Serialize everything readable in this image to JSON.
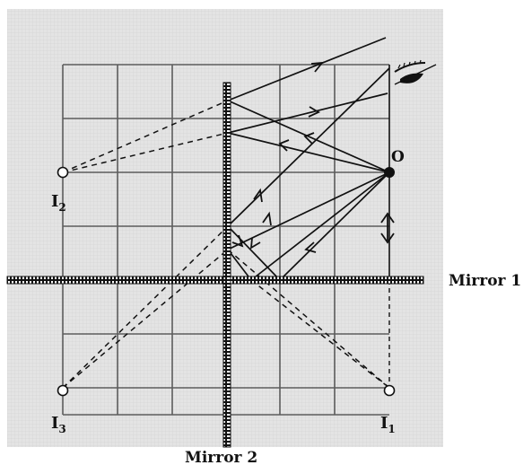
{
  "labels": {
    "object": "O",
    "image1": "I",
    "image1_sub": "1",
    "image2": "I",
    "image2_sub": "2",
    "image3": "I",
    "image3_sub": "3",
    "mirror1": "Mirror 1",
    "mirror2": "Mirror 2"
  },
  "colors": {
    "panel_bg": "#e2e2e2",
    "grid_line": "#5c5c5c",
    "ray": "#111111",
    "mirror": "#111111"
  },
  "icons": {
    "eye": "eye-icon",
    "double_arrow": "double-headed-arrow-icon"
  }
}
